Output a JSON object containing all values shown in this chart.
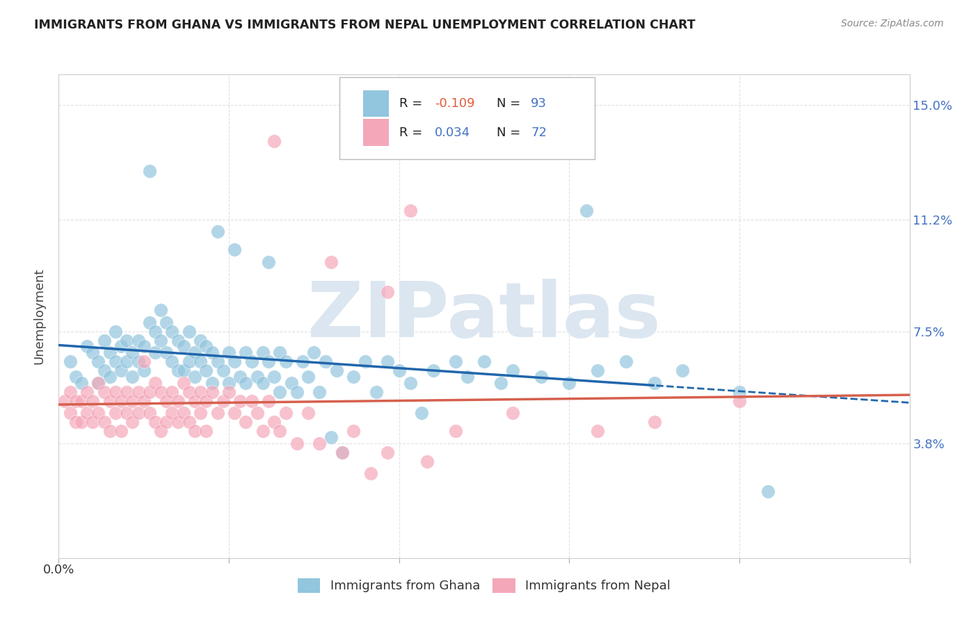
{
  "title": "IMMIGRANTS FROM GHANA VS IMMIGRANTS FROM NEPAL UNEMPLOYMENT CORRELATION CHART",
  "source": "Source: ZipAtlas.com",
  "ylabel": "Unemployment",
  "x_min": 0.0,
  "x_max": 0.15,
  "y_min": 0.0,
  "y_max": 0.16,
  "y_ticks": [
    0.038,
    0.075,
    0.112,
    0.15
  ],
  "y_tick_labels": [
    "3.8%",
    "7.5%",
    "11.2%",
    "15.0%"
  ],
  "ghana_R": -0.109,
  "ghana_N": 93,
  "nepal_R": 0.034,
  "nepal_N": 72,
  "ghana_color": "#92c5de",
  "nepal_color": "#f4a7b9",
  "ghana_line_color": "#2166ac",
  "nepal_line_color": "#d6604d",
  "watermark_text": "ZIPatlas",
  "watermark_color": "#dce6f0",
  "background_color": "#ffffff",
  "grid_color": "#e0e0e8",
  "legend_R1": "R = -0.109",
  "legend_N1": "N = 93",
  "legend_R2": "R =  0.034",
  "legend_N2": "N = 72",
  "ghana_label": "Immigrants from Ghana",
  "nepal_label": "Immigrants from Nepal"
}
